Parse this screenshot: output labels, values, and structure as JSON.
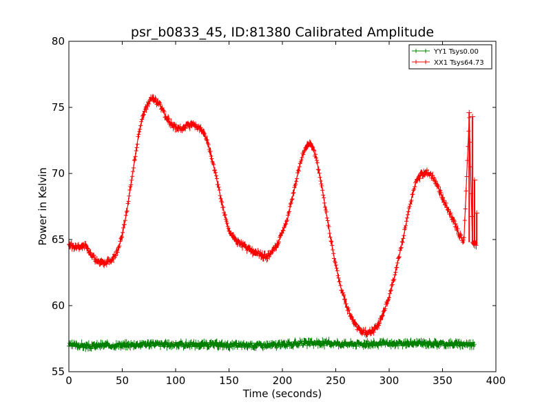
{
  "chart_data": {
    "type": "line",
    "title": "psr_b0833_45, ID:81380 Calibrated Amplitude",
    "xlabel": "Time (seconds)",
    "ylabel": "Power in Kelvin",
    "xlim": [
      0,
      400
    ],
    "ylim": [
      55,
      80
    ],
    "xticks": [
      0,
      50,
      100,
      150,
      200,
      250,
      300,
      350,
      400
    ],
    "yticks": [
      55,
      60,
      65,
      70,
      75,
      80
    ],
    "grid": false,
    "legend_position": "top-right",
    "markers": "+ with error bars",
    "series": [
      {
        "name": "YY1 Tsys0.00",
        "color": "#008000",
        "x": [
          0,
          10,
          20,
          30,
          40,
          50,
          60,
          70,
          80,
          90,
          100,
          110,
          120,
          130,
          140,
          150,
          160,
          170,
          180,
          190,
          200,
          210,
          220,
          230,
          240,
          250,
          260,
          270,
          280,
          290,
          300,
          310,
          320,
          330,
          340,
          350,
          360,
          370,
          380
        ],
        "y": [
          57.0,
          57.0,
          56.9,
          57.0,
          57.0,
          57.0,
          57.05,
          57.1,
          57.1,
          57.05,
          57.05,
          57.05,
          57.05,
          57.05,
          57.05,
          57.0,
          57.0,
          57.0,
          57.0,
          57.0,
          57.05,
          57.1,
          57.15,
          57.15,
          57.15,
          57.15,
          57.1,
          57.1,
          57.1,
          57.1,
          57.1,
          57.1,
          57.15,
          57.15,
          57.15,
          57.1,
          57.1,
          57.1,
          57.1
        ]
      },
      {
        "name": "XX1 Tsys64.73",
        "color": "#ff0000",
        "x": [
          0,
          10,
          15,
          20,
          25,
          30,
          35,
          40,
          45,
          50,
          55,
          60,
          65,
          70,
          75,
          78,
          85,
          90,
          95,
          100,
          105,
          110,
          115,
          120,
          125,
          130,
          135,
          140,
          145,
          150,
          155,
          160,
          170,
          180,
          185,
          190,
          195,
          200,
          205,
          210,
          215,
          220,
          225,
          228,
          232,
          236,
          240,
          245,
          250,
          255,
          260,
          265,
          270,
          275,
          280,
          285,
          290,
          295,
          300,
          305,
          310,
          315,
          320,
          325,
          330,
          335,
          340,
          345,
          350,
          355,
          360,
          365,
          370,
          375,
          378,
          382
        ],
        "y": [
          64.6,
          64.4,
          64.5,
          64.0,
          63.5,
          63.3,
          63.3,
          63.5,
          64.0,
          65.3,
          67.5,
          70.2,
          72.8,
          74.5,
          75.4,
          75.7,
          75.2,
          74.4,
          73.8,
          73.5,
          73.4,
          73.6,
          73.7,
          73.6,
          73.2,
          72.3,
          70.8,
          69.0,
          67.2,
          65.7,
          65.0,
          64.7,
          64.2,
          63.8,
          63.7,
          64.0,
          64.6,
          65.5,
          66.6,
          68.4,
          70.2,
          71.7,
          72.3,
          72.1,
          71.0,
          69.5,
          67.5,
          65.2,
          63.0,
          61.3,
          60.0,
          59.0,
          58.3,
          58.0,
          57.9,
          58.1,
          58.6,
          59.5,
          60.7,
          62.2,
          64.0,
          65.8,
          67.8,
          69.3,
          69.9,
          70.1,
          69.8,
          69.1,
          68.2,
          67.3,
          66.5,
          65.5,
          64.8,
          74.2,
          64.8,
          64.6
        ]
      }
    ]
  }
}
